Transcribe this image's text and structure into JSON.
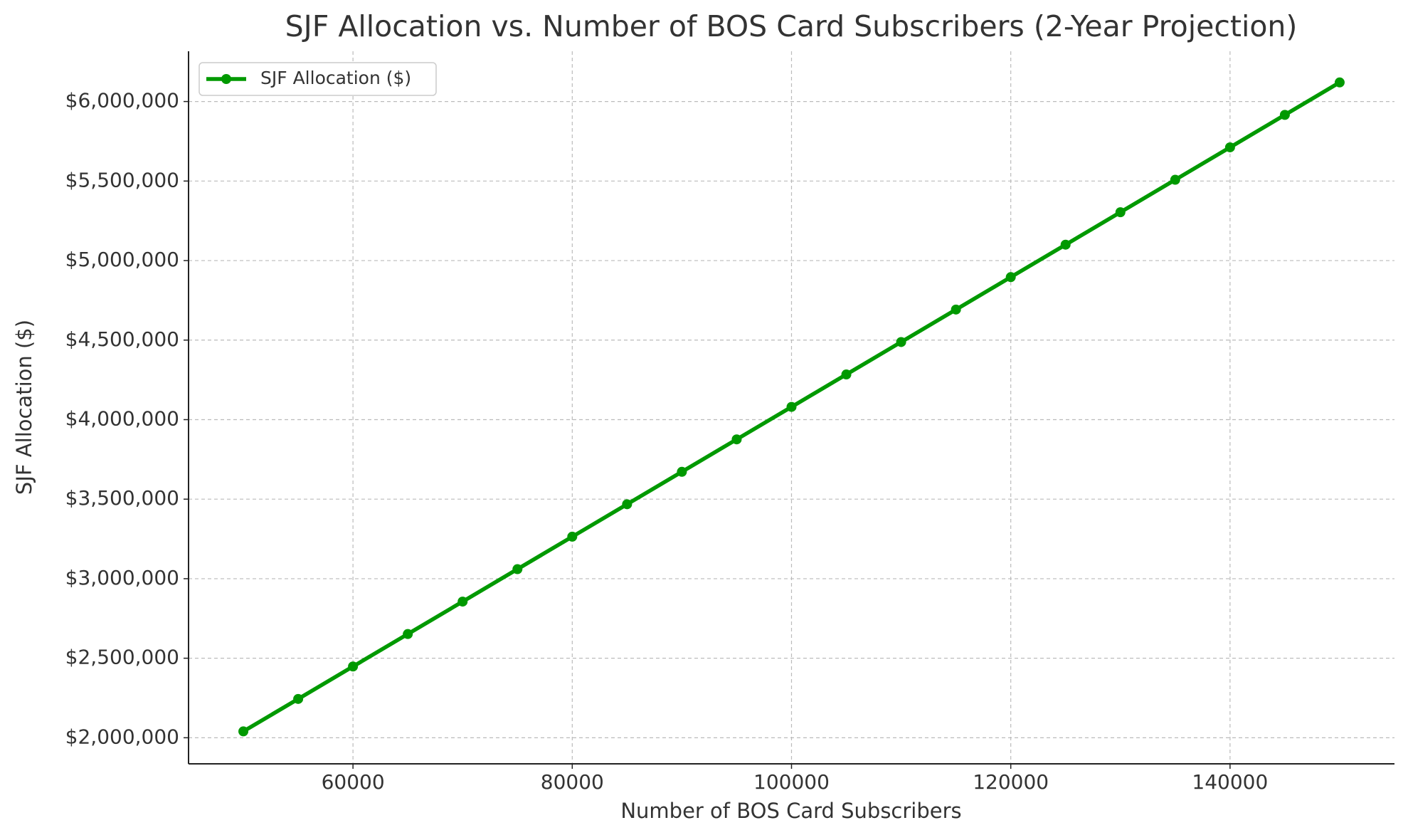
{
  "chart_data": {
    "type": "line",
    "title": "SJF Allocation vs. Number of BOS Card Subscribers (2-Year Projection)",
    "x_label": "Number of BOS Card Subscribers",
    "y_label": "SJF Allocation ($)",
    "x": [
      50000,
      55000,
      60000,
      65000,
      70000,
      75000,
      80000,
      85000,
      90000,
      95000,
      100000,
      105000,
      110000,
      115000,
      120000,
      125000,
      130000,
      135000,
      140000,
      145000,
      150000
    ],
    "series": [
      {
        "name": "SJF Allocation ($)",
        "color": "#009900",
        "values": [
          2040000,
          2244000,
          2448000,
          2652000,
          2856000,
          3060000,
          3264000,
          3468000,
          3672000,
          3876000,
          4080000,
          4284000,
          4488000,
          4692000,
          4896000,
          5100000,
          5304000,
          5508000,
          5712000,
          5916000,
          6120000
        ]
      }
    ],
    "xlim": [
      45000,
      155000
    ],
    "xticks": [
      60000,
      80000,
      100000,
      120000,
      140000
    ],
    "ylim": [
      1836000,
      6316000
    ],
    "yticks": [
      {
        "value": 2000000,
        "label": "$2,000,000"
      },
      {
        "value": 2500000,
        "label": "$2,500,000"
      },
      {
        "value": 3000000,
        "label": "$3,000,000"
      },
      {
        "value": 3500000,
        "label": "$3,500,000"
      },
      {
        "value": 4000000,
        "label": "$4,000,000"
      },
      {
        "value": 4500000,
        "label": "$4,500,000"
      },
      {
        "value": 5000000,
        "label": "$5,000,000"
      },
      {
        "value": 5500000,
        "label": "$5,500,000"
      },
      {
        "value": 6000000,
        "label": "$6,000,000"
      }
    ],
    "grid": true,
    "legend": "upper left"
  }
}
